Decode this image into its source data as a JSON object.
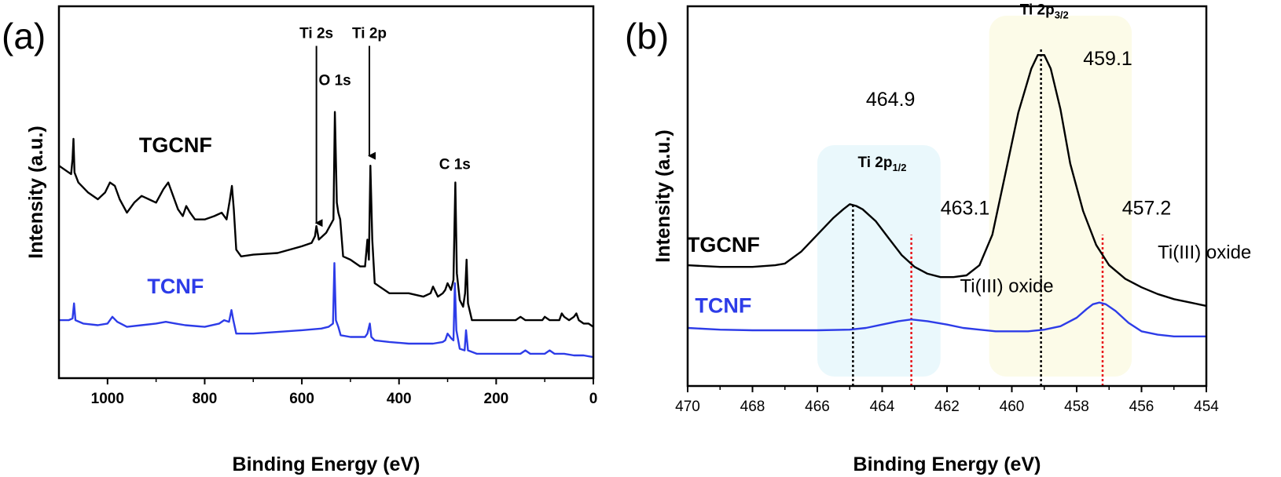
{
  "chart_data": [
    {
      "panel": "(a)",
      "type": "line",
      "xlabel": "Binding Energy (eV)",
      "ylabel": "Intensity (a.u.)",
      "xlim": [
        1100,
        0
      ],
      "x_reversed": true,
      "ylim": [
        0,
        100
      ],
      "xticks": [
        "1000",
        "800",
        "600",
        "400",
        "200",
        "0"
      ],
      "grid": false,
      "series": [
        {
          "name": "TGCNF",
          "color": "#000000",
          "points": [
            [
              1100,
              60
            ],
            [
              1080,
              58
            ],
            [
              1075,
              57.5
            ],
            [
              1072,
              62
            ],
            [
              1070,
              68
            ],
            [
              1068,
              58
            ],
            [
              1060,
              55
            ],
            [
              1040,
              52
            ],
            [
              1020,
              50
            ],
            [
              1005,
              52
            ],
            [
              995,
              55
            ],
            [
              985,
              54
            ],
            [
              975,
              50
            ],
            [
              960,
              46
            ],
            [
              945,
              49
            ],
            [
              930,
              51
            ],
            [
              915,
              50
            ],
            [
              900,
              49
            ],
            [
              885,
              53
            ],
            [
              875,
              55
            ],
            [
              865,
              51
            ],
            [
              855,
              47
            ],
            [
              845,
              45
            ],
            [
              838,
              48
            ],
            [
              830,
              46
            ],
            [
              820,
              44
            ],
            [
              800,
              44
            ],
            [
              780,
              45
            ],
            [
              765,
              46
            ],
            [
              755,
              44
            ],
            [
              748,
              50
            ],
            [
              744,
              54
            ],
            [
              740,
              47
            ],
            [
              735,
              35
            ],
            [
              725,
              33
            ],
            [
              700,
              33.5
            ],
            [
              650,
              34
            ],
            [
              600,
              36
            ],
            [
              580,
              37
            ],
            [
              573,
              39
            ],
            [
              570,
              42
            ],
            [
              565,
              38
            ],
            [
              550,
              40
            ],
            [
              535,
              44
            ],
            [
              532,
              76
            ],
            [
              528,
              49
            ],
            [
              525,
              46
            ],
            [
              521,
              44
            ],
            [
              515,
              33
            ],
            [
              500,
              32
            ],
            [
              480,
              30
            ],
            [
              470,
              30
            ],
            [
              465,
              38
            ],
            [
              462,
              32
            ],
            [
              459,
              60
            ],
            [
              455,
              38
            ],
            [
              450,
              25
            ],
            [
              440,
              24
            ],
            [
              420,
              22
            ],
            [
              400,
              22
            ],
            [
              380,
              22
            ],
            [
              350,
              21
            ],
            [
              335,
              22
            ],
            [
              330,
              24
            ],
            [
              320,
              21
            ],
            [
              310,
              22
            ],
            [
              305,
              23
            ],
            [
              300,
              25
            ],
            [
              293,
              23
            ],
            [
              288,
              26
            ],
            [
              284,
              55
            ],
            [
              281,
              28
            ],
            [
              275,
              20
            ],
            [
              268,
              18
            ],
            [
              264,
              22
            ],
            [
              261,
              32
            ],
            [
              258,
              19
            ],
            [
              250,
              14
            ],
            [
              220,
              14
            ],
            [
              200,
              14
            ],
            [
              160,
              14
            ],
            [
              150,
              15
            ],
            [
              140,
              14
            ],
            [
              105,
              14
            ],
            [
              100,
              15
            ],
            [
              90,
              14
            ],
            [
              70,
              14
            ],
            [
              65,
              16
            ],
            [
              60,
              15
            ],
            [
              50,
              14
            ],
            [
              40,
              15
            ],
            [
              35,
              16
            ],
            [
              30,
              14
            ],
            [
              20,
              13
            ],
            [
              10,
              13
            ],
            [
              0,
              12
            ]
          ]
        },
        {
          "name": "TCNF",
          "color": "#2d3ce8",
          "points": [
            [
              1100,
              14
            ],
            [
              1080,
              14
            ],
            [
              1072,
              14.5
            ],
            [
              1069,
              19
            ],
            [
              1066,
              14
            ],
            [
              1050,
              13
            ],
            [
              1020,
              12.5
            ],
            [
              1000,
              13
            ],
            [
              990,
              15
            ],
            [
              980,
              13.5
            ],
            [
              960,
              12
            ],
            [
              930,
              12.5
            ],
            [
              900,
              13
            ],
            [
              880,
              13.5
            ],
            [
              860,
              13
            ],
            [
              840,
              12.5
            ],
            [
              800,
              12
            ],
            [
              770,
              13
            ],
            [
              760,
              14
            ],
            [
              750,
              13.5
            ],
            [
              745,
              17
            ],
            [
              741,
              14
            ],
            [
              735,
              10
            ],
            [
              700,
              10
            ],
            [
              650,
              10.5
            ],
            [
              600,
              11
            ],
            [
              560,
              11.5
            ],
            [
              545,
              12
            ],
            [
              536,
              13
            ],
            [
              533,
              31
            ],
            [
              530,
              14
            ],
            [
              525,
              12
            ],
            [
              520,
              9.5
            ],
            [
              500,
              9
            ],
            [
              470,
              9
            ],
            [
              465,
              10
            ],
            [
              460,
              13
            ],
            [
              457,
              9
            ],
            [
              450,
              8
            ],
            [
              420,
              7.5
            ],
            [
              380,
              7
            ],
            [
              330,
              7
            ],
            [
              310,
              7.5
            ],
            [
              305,
              8
            ],
            [
              300,
              10
            ],
            [
              292,
              8.5
            ],
            [
              288,
              8
            ],
            [
              285,
              25
            ],
            [
              282,
              11
            ],
            [
              275,
              5.5
            ],
            [
              265,
              5
            ],
            [
              262,
              11
            ],
            [
              258,
              5
            ],
            [
              240,
              4
            ],
            [
              200,
              4
            ],
            [
              150,
              4
            ],
            [
              140,
              5
            ],
            [
              130,
              4
            ],
            [
              100,
              4
            ],
            [
              90,
              5
            ],
            [
              80,
              4
            ],
            [
              60,
              4
            ],
            [
              40,
              3.5
            ],
            [
              20,
              3.5
            ],
            [
              0,
              3
            ]
          ]
        }
      ],
      "annotations": [
        {
          "text": "Ti 2s",
          "x": 570,
          "y": 98,
          "arrow_to": [
            570,
            42
          ]
        },
        {
          "text": "Ti 2p",
          "x": 461,
          "y": 98,
          "arrow_to": [
            461,
            62
          ]
        },
        {
          "text": "O 1s",
          "x": 532,
          "y": 84
        },
        {
          "text": "C 1s",
          "x": 285,
          "y": 59
        }
      ],
      "series_labels": [
        {
          "text": "TGCNF",
          "x": 860,
          "y": 64
        },
        {
          "text": "TCNF",
          "x": 860,
          "y": 22
        }
      ]
    },
    {
      "panel": "(b)",
      "type": "line",
      "xlabel": "Binding Energy (eV)",
      "ylabel": "Intensity (a.u.)",
      "xlim": [
        470,
        454
      ],
      "x_reversed": true,
      "ylim": [
        0,
        100
      ],
      "xticks": [
        "470",
        "468",
        "466",
        "464",
        "462",
        "460",
        "458",
        "456",
        "454"
      ],
      "grid": false,
      "series": [
        {
          "name": "TGCNF",
          "color": "#000000",
          "points": [
            [
              470,
              31
            ],
            [
              469,
              30.5
            ],
            [
              468,
              30.5
            ],
            [
              467.3,
              31
            ],
            [
              467,
              31.5
            ],
            [
              466.5,
              35
            ],
            [
              466,
              40
            ],
            [
              465.5,
              45
            ],
            [
              465.2,
              47.5
            ],
            [
              465,
              49
            ],
            [
              464.8,
              48.5
            ],
            [
              464.6,
              47.5
            ],
            [
              464.2,
              44
            ],
            [
              463.8,
              39
            ],
            [
              463.4,
              34
            ],
            [
              463,
              30.5
            ],
            [
              462.6,
              28.5
            ],
            [
              462.2,
              27.5
            ],
            [
              461.8,
              27.5
            ],
            [
              461.4,
              28
            ],
            [
              461,
              31
            ],
            [
              460.6,
              40
            ],
            [
              460.2,
              58
            ],
            [
              459.8,
              76
            ],
            [
              459.4,
              89
            ],
            [
              459.2,
              93
            ],
            [
              459.0,
              93
            ],
            [
              458.8,
              89
            ],
            [
              458.5,
              77
            ],
            [
              458.2,
              61
            ],
            [
              457.8,
              47
            ],
            [
              457.4,
              37
            ],
            [
              457,
              31
            ],
            [
              456.5,
              27
            ],
            [
              456,
              24.5
            ],
            [
              455.5,
              22.5
            ],
            [
              455,
              21
            ],
            [
              454.5,
              20
            ],
            [
              454,
              19
            ]
          ]
        },
        {
          "name": "TCNF",
          "color": "#2d3ce8",
          "points": [
            [
              470,
              12.5
            ],
            [
              469,
              12
            ],
            [
              468,
              11.8
            ],
            [
              467,
              11.8
            ],
            [
              466,
              11.8
            ],
            [
              465,
              12
            ],
            [
              464.5,
              12.5
            ],
            [
              464,
              13.5
            ],
            [
              463.5,
              14.5
            ],
            [
              463.1,
              15
            ],
            [
              462.6,
              14.5
            ],
            [
              462,
              13.5
            ],
            [
              461.5,
              12.5
            ],
            [
              461,
              12
            ],
            [
              460.5,
              11.5
            ],
            [
              460,
              11.5
            ],
            [
              459.5,
              11.5
            ],
            [
              459,
              12
            ],
            [
              458.5,
              13
            ],
            [
              458,
              15.5
            ],
            [
              457.7,
              18
            ],
            [
              457.5,
              19.5
            ],
            [
              457.3,
              20
            ],
            [
              457.1,
              19.5
            ],
            [
              456.8,
              17.5
            ],
            [
              456.4,
              14
            ],
            [
              456,
              11.5
            ],
            [
              455.5,
              10.5
            ],
            [
              455,
              10
            ],
            [
              454.5,
              10
            ],
            [
              454,
              10
            ]
          ]
        }
      ],
      "highlight_regions": [
        {
          "x0": 466.0,
          "x1": 462.2,
          "color": "#eaf8fc"
        },
        {
          "x0": 460.7,
          "x1": 456.3,
          "color": "#fcfbe8"
        }
      ],
      "vertical_lines": [
        {
          "x": 464.9,
          "y_to": 49,
          "color": "#000000"
        },
        {
          "x": 459.1,
          "y_to": 95,
          "color": "#000000"
        },
        {
          "x": 463.1,
          "y_to": 40,
          "color": "#e8151b"
        },
        {
          "x": 457.2,
          "y_to": 40,
          "color": "#e8151b"
        }
      ],
      "annotations": [
        {
          "text": "464.9",
          "x": 464.5,
          "y": 78
        },
        {
          "text": "459.1",
          "x": 457.8,
          "y": 90
        },
        {
          "text": "463.1",
          "x": 462.2,
          "y": 46
        },
        {
          "text": "457.2",
          "x": 456.6,
          "y": 46
        },
        {
          "text": "Ti(III)  oxide",
          "x": 461.6,
          "y": 23
        },
        {
          "text": "Ti(III)  oxide",
          "x": 455.5,
          "y": 33
        }
      ],
      "peak_labels": [
        {
          "main": "Ti 2p",
          "sub": "1/2",
          "x": 464.0,
          "y": 60
        },
        {
          "main": "Ti 2p",
          "sub": "3/2",
          "x": 459.0,
          "y": 105
        }
      ],
      "series_labels": [
        {
          "text": "TGCNF",
          "x": 468.9,
          "y": 35
        },
        {
          "text": "TCNF",
          "x": 468.9,
          "y": 17
        }
      ]
    }
  ]
}
